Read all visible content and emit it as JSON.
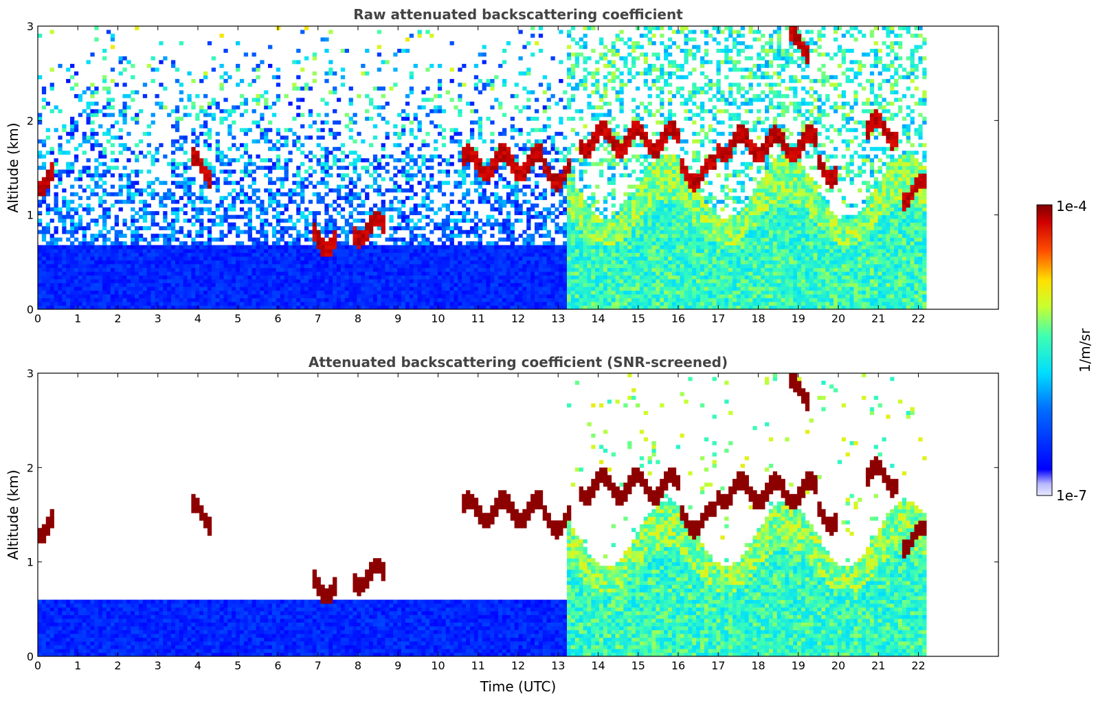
{
  "chart_data": [
    {
      "type": "heatmap",
      "title": "Raw attenuated backscattering coefficient",
      "xlabel": "",
      "ylabel": "Altitude (km)",
      "xlim": [
        0,
        24
      ],
      "ylim": [
        0,
        3
      ],
      "x_ticks": [
        "0",
        "1",
        "2",
        "3",
        "4",
        "5",
        "6",
        "7",
        "8",
        "9",
        "10",
        "11",
        "12",
        "13",
        "14",
        "15",
        "16",
        "17",
        "18",
        "19",
        "20",
        "21",
        "22"
      ],
      "y_ticks": [
        "0",
        "1",
        "2",
        "3"
      ],
      "data_extent_x": [
        0,
        22.2
      ],
      "screened": false,
      "cloud_layers": [
        {
          "x_start": 0.0,
          "x_end": 0.4,
          "altitude_km": 1.4
        },
        {
          "x_start": 3.8,
          "x_end": 4.3,
          "altitude_km": 1.5
        },
        {
          "x_start": 6.9,
          "x_end": 7.5,
          "altitude_km": 0.75
        },
        {
          "x_start": 7.9,
          "x_end": 8.7,
          "altitude_km": 0.85
        },
        {
          "x_start": 10.6,
          "x_end": 12.6,
          "altitude_km": 1.55
        },
        {
          "x_start": 12.6,
          "x_end": 13.3,
          "altitude_km": 1.45
        },
        {
          "x_start": 13.5,
          "x_end": 15.0,
          "altitude_km": 1.8
        },
        {
          "x_start": 15.0,
          "x_end": 16.0,
          "altitude_km": 1.8
        },
        {
          "x_start": 16.0,
          "x_end": 17.0,
          "altitude_km": 1.45
        },
        {
          "x_start": 17.0,
          "x_end": 19.5,
          "altitude_km": 1.75
        },
        {
          "x_start": 19.5,
          "x_end": 20.0,
          "altitude_km": 1.5
        },
        {
          "x_start": 20.7,
          "x_end": 21.5,
          "altitude_km": 1.9
        },
        {
          "x_start": 21.6,
          "x_end": 22.2,
          "altitude_km": 1.25
        },
        {
          "x_start": 18.8,
          "x_end": 19.3,
          "altitude_km": 2.8
        }
      ],
      "aerosol_layer_top_km": 0.7,
      "enhanced_boundary_layer_start_x": 13.2
    },
    {
      "type": "heatmap",
      "title": "Attenuated backscattering coefficient (SNR-screened)",
      "xlabel": "Time (UTC)",
      "ylabel": "Altitude (km)",
      "xlim": [
        0,
        24
      ],
      "ylim": [
        0,
        3
      ],
      "x_ticks": [
        "0",
        "1",
        "2",
        "3",
        "4",
        "5",
        "6",
        "7",
        "8",
        "9",
        "10",
        "11",
        "12",
        "13",
        "14",
        "15",
        "16",
        "17",
        "18",
        "19",
        "20",
        "21",
        "22"
      ],
      "y_ticks": [
        "0",
        "1",
        "2",
        "3"
      ],
      "data_extent_x": [
        0,
        22.2
      ],
      "screened": true,
      "aerosol_layer_top_km": 0.6
    }
  ],
  "colorbar": {
    "label": "1/m/sr",
    "max_label": "1e-4",
    "min_label": "1e-7",
    "scale": "log",
    "colormap": "jet",
    "range": [
      1e-07,
      0.0001
    ]
  }
}
